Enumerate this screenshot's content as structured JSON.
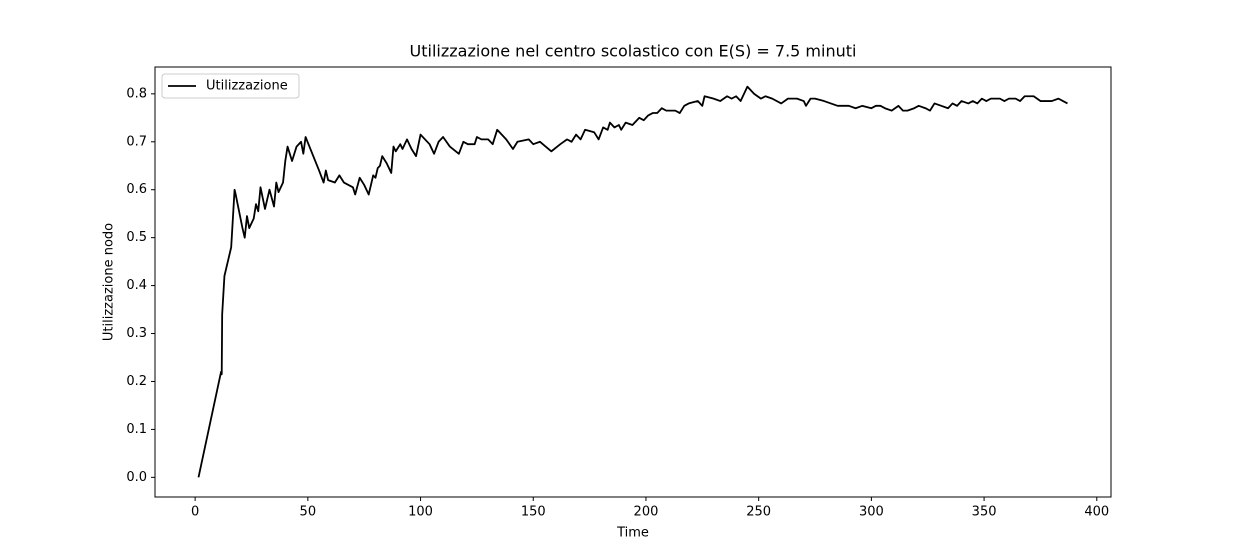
{
  "chart_data": {
    "type": "line",
    "title": "Utilizzazione nel centro scolastico con E(S) = 7.5 minuti",
    "xlabel": "Time",
    "ylabel": "Utilizzazione nodo",
    "x": [
      1.5,
      11.5,
      11.8,
      12,
      13,
      16,
      17.5,
      18,
      21,
      22,
      23,
      24,
      26,
      27,
      28,
      29,
      31,
      33,
      35,
      36,
      37,
      39,
      40,
      41,
      43,
      45,
      47,
      48,
      49,
      55,
      57,
      58,
      59,
      62,
      64,
      66,
      70,
      71,
      73,
      75,
      77,
      79,
      80,
      81,
      82,
      83,
      85,
      87,
      88,
      89,
      91,
      92,
      94,
      96,
      98,
      100,
      104,
      106,
      108,
      110,
      113,
      117,
      119,
      121,
      124,
      125,
      127,
      130,
      132,
      134,
      138,
      141,
      143,
      148,
      150,
      153,
      158,
      162,
      165,
      167,
      169,
      171,
      173,
      177,
      179,
      181,
      183,
      184,
      186,
      188,
      189,
      191,
      194,
      196,
      197,
      199,
      201,
      203,
      205,
      207,
      209,
      211,
      213,
      215,
      217,
      219,
      223,
      225,
      226,
      230,
      233,
      236,
      238,
      240,
      242,
      245,
      248,
      251,
      253,
      256,
      260,
      263,
      267,
      270,
      271,
      273,
      275,
      279,
      282,
      285,
      290,
      293,
      296,
      300,
      302,
      304,
      306,
      309,
      312,
      314,
      316,
      319,
      321,
      324,
      326,
      328,
      331,
      334,
      336,
      338,
      340,
      343,
      345,
      347,
      349,
      351,
      353,
      357,
      359,
      361,
      364,
      366,
      368,
      372,
      375,
      380,
      383,
      385,
      387
    ],
    "series": [
      {
        "name": "Utilizzazione",
        "color": "#000000",
        "values": [
          0,
          0.22,
          0.215,
          0.34,
          0.42,
          0.48,
          0.6,
          0.59,
          0.52,
          0.5,
          0.545,
          0.52,
          0.54,
          0.57,
          0.555,
          0.605,
          0.56,
          0.6,
          0.565,
          0.615,
          0.595,
          0.615,
          0.66,
          0.69,
          0.66,
          0.69,
          0.7,
          0.675,
          0.71,
          0.64,
          0.615,
          0.64,
          0.62,
          0.615,
          0.63,
          0.615,
          0.605,
          0.59,
          0.625,
          0.61,
          0.59,
          0.63,
          0.625,
          0.645,
          0.65,
          0.67,
          0.655,
          0.635,
          0.69,
          0.68,
          0.695,
          0.685,
          0.705,
          0.685,
          0.67,
          0.715,
          0.695,
          0.675,
          0.7,
          0.71,
          0.69,
          0.675,
          0.7,
          0.695,
          0.695,
          0.71,
          0.705,
          0.705,
          0.695,
          0.725,
          0.705,
          0.685,
          0.7,
          0.705,
          0.695,
          0.7,
          0.68,
          0.695,
          0.705,
          0.7,
          0.715,
          0.705,
          0.725,
          0.72,
          0.705,
          0.73,
          0.725,
          0.74,
          0.73,
          0.735,
          0.725,
          0.74,
          0.735,
          0.745,
          0.75,
          0.745,
          0.755,
          0.76,
          0.76,
          0.77,
          0.765,
          0.765,
          0.765,
          0.76,
          0.775,
          0.78,
          0.785,
          0.775,
          0.795,
          0.79,
          0.785,
          0.795,
          0.79,
          0.795,
          0.785,
          0.815,
          0.8,
          0.79,
          0.795,
          0.79,
          0.78,
          0.79,
          0.79,
          0.785,
          0.775,
          0.79,
          0.79,
          0.785,
          0.78,
          0.775,
          0.775,
          0.77,
          0.775,
          0.77,
          0.775,
          0.775,
          0.77,
          0.765,
          0.775,
          0.765,
          0.765,
          0.77,
          0.775,
          0.77,
          0.765,
          0.78,
          0.775,
          0.77,
          0.78,
          0.775,
          0.785,
          0.78,
          0.785,
          0.78,
          0.79,
          0.785,
          0.79,
          0.79,
          0.785,
          0.79,
          0.79,
          0.785,
          0.795,
          0.795,
          0.785,
          0.785,
          0.79,
          0.785,
          0.78
        ]
      }
    ],
    "xlim": [
      -17.8,
      406.3
    ],
    "ylim": [
      -0.041,
      0.856
    ],
    "xticks": [
      0,
      50,
      100,
      150,
      200,
      250,
      300,
      350,
      400
    ],
    "yticks": [
      {
        "value": 0,
        "label": "0.0"
      },
      0.1,
      0.2,
      0.3,
      0.4,
      0.5,
      0.6,
      0.7,
      0.8
    ],
    "legend": "upper left"
  }
}
